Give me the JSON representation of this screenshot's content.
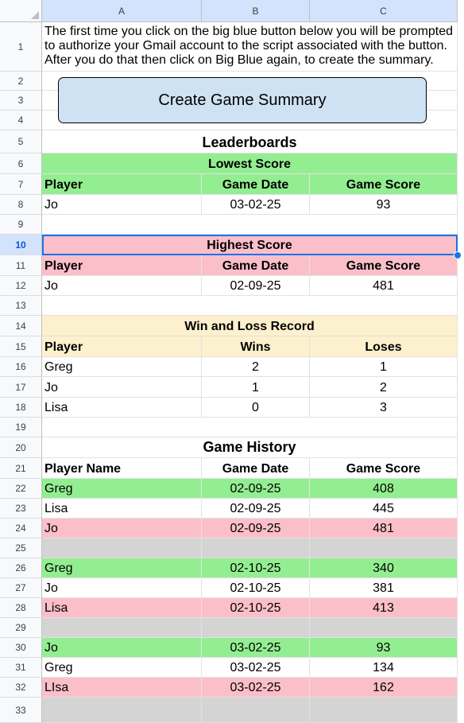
{
  "columns": [
    "A",
    "B",
    "C"
  ],
  "rows": [
    "1",
    "2",
    "3",
    "4",
    "5",
    "6",
    "7",
    "8",
    "9",
    "10",
    "11",
    "12",
    "13",
    "14",
    "15",
    "16",
    "17",
    "18",
    "19",
    "20",
    "21",
    "22",
    "23",
    "24",
    "25",
    "26",
    "27",
    "28",
    "29",
    "30",
    "31",
    "32",
    "33"
  ],
  "intro_text": "The first time you click on the big blue button below you will be prompted to authorize your Gmail account to the script associated with the button. After you do that then click on Big Blue again, to create the summary.",
  "button_label": "Create Game Summary",
  "leaderboards_title": "Leaderboards",
  "lowest": {
    "title": "Lowest Score",
    "headers": [
      "Player",
      "Game Date",
      "Game Score"
    ],
    "row": [
      "Jo",
      "03-02-25",
      "93"
    ]
  },
  "highest": {
    "title": "Highest Score",
    "headers": [
      "Player",
      "Game Date",
      "Game Score"
    ],
    "row": [
      "Jo",
      "02-09-25",
      "481"
    ]
  },
  "winloss": {
    "title": "Win and Loss Record",
    "headers": [
      "Player",
      "Wins",
      "Loses"
    ],
    "rows": [
      [
        "Greg",
        "2",
        "1"
      ],
      [
        "Jo",
        "1",
        "2"
      ],
      [
        "Lisa",
        "0",
        "3"
      ]
    ]
  },
  "history": {
    "title": "Game History",
    "headers": [
      "Player Name",
      "Game Date",
      "Game Score"
    ],
    "rows": [
      [
        "Greg",
        "02-09-25",
        "408"
      ],
      [
        "Lisa",
        "02-09-25",
        "445"
      ],
      [
        "Jo",
        "02-09-25",
        "481"
      ],
      [
        "Jo",
        "03-02-25",
        "93"
      ],
      [
        "Greg",
        "03-02-25",
        "134"
      ],
      [
        "LIsa",
        "03-02-25",
        "162"
      ],
      [
        "Greg",
        "02-10-25",
        "340"
      ],
      [
        "Jo",
        "02-10-25",
        "381"
      ],
      [
        "Lisa",
        "02-10-25",
        "413"
      ]
    ]
  },
  "colors": {
    "win": "#93ee91",
    "loss": "#fbbfca",
    "header": "#fdf0cd",
    "separator": "#d4d4d4",
    "selection": "#1a73e8"
  }
}
